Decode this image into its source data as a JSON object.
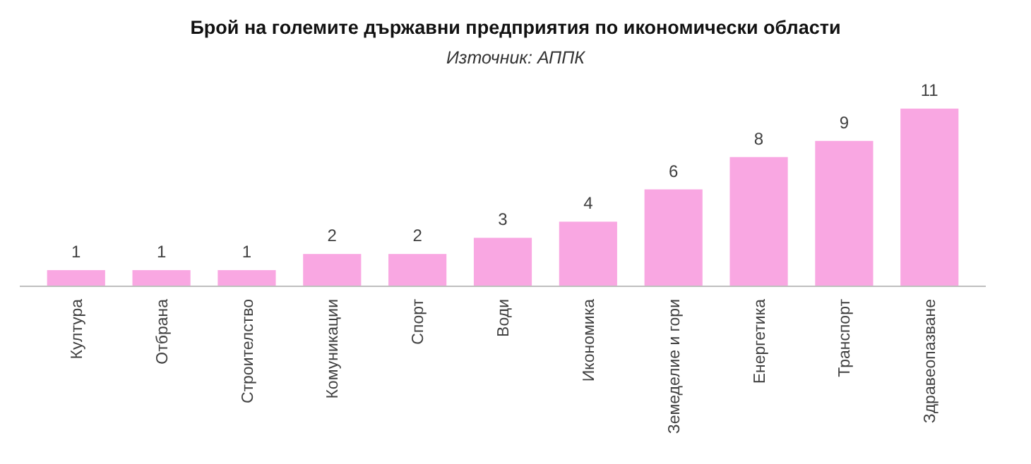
{
  "chart_data": {
    "type": "bar",
    "title": "Брой на големите държавни предприятия по икономически области",
    "subtitle": "Източник: АППК",
    "categories": [
      "Култура",
      "Отбрана",
      "Строителство",
      "Комуникации",
      "Спорт",
      "Води",
      "Икономика",
      "Земеделие и гори",
      "Енергетика",
      "Транспорт",
      "Здравеопазване"
    ],
    "values": [
      1,
      1,
      1,
      2,
      2,
      3,
      4,
      6,
      8,
      9,
      11
    ],
    "color": "#f9a7e2",
    "data_labels": true
  }
}
